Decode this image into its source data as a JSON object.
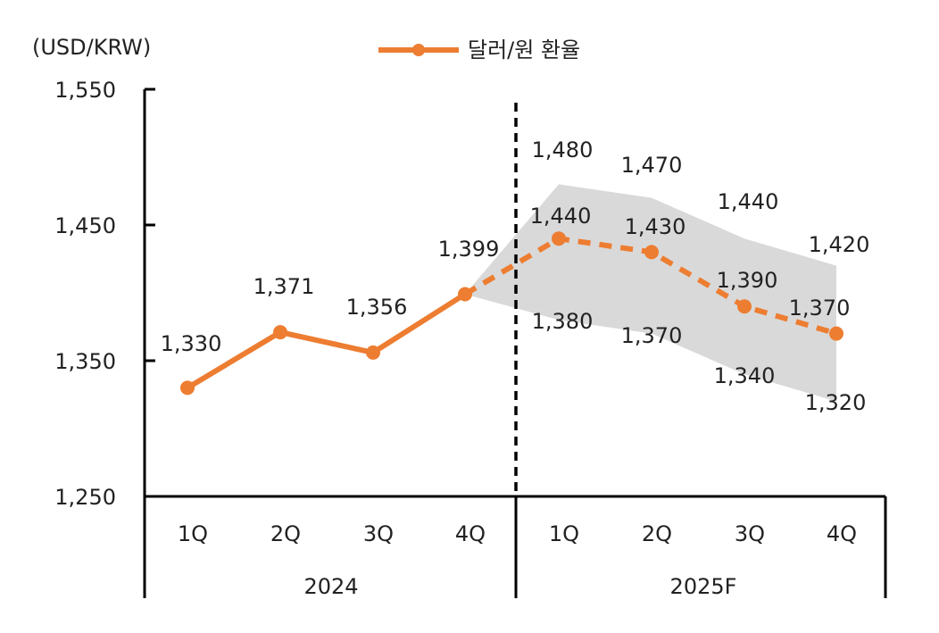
{
  "chart_data": {
    "type": "line",
    "unit_label": "(USD/KRW)",
    "legend": {
      "label": "달러/원 환율",
      "placement": "top-center"
    },
    "y_axis": {
      "min": 1250,
      "max": 1550,
      "ticks": [
        "1,250",
        "1,350",
        "1,450",
        "1,550"
      ]
    },
    "x_axis": {
      "quarters": [
        "1Q",
        "2Q",
        "3Q",
        "4Q",
        "1Q",
        "2Q",
        "3Q",
        "4Q"
      ],
      "years": [
        "2024",
        "2025F"
      ]
    },
    "series": [
      {
        "name": "달러/원 환율",
        "color": "#ED7D31",
        "actual": [
          1330,
          1371,
          1356,
          1399
        ],
        "forecast": [
          1399,
          1440,
          1430,
          1390,
          1370
        ],
        "value_labels": [
          "1,330",
          "1,371",
          "1,356",
          "1,399",
          "1,440",
          "1,430",
          "1,390",
          "1,370"
        ]
      }
    ],
    "forecast_band": {
      "color": "#D9D9D9",
      "upper": [
        1399,
        1480,
        1470,
        1440,
        1420
      ],
      "lower": [
        1399,
        1380,
        1370,
        1340,
        1320
      ],
      "upper_labels": [
        "1,480",
        "1,470",
        "1,440",
        "1,420"
      ],
      "lower_labels": [
        "1,380",
        "1,370",
        "1,340",
        "1,320"
      ]
    }
  }
}
